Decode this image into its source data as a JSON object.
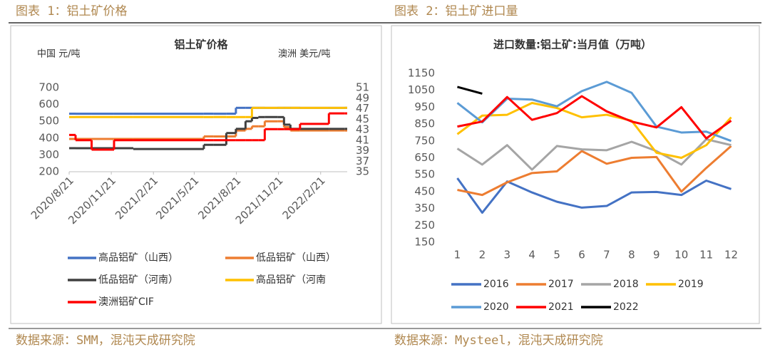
{
  "panels": [
    {
      "caption": "图表 1：铝土矿价格",
      "source": "数据来源：SMM，混沌天成研究院"
    },
    {
      "caption": "图表 2：铝土矿进口量",
      "source": "数据来源：Mysteel，混沌天成研究院"
    }
  ],
  "chart_data": [
    {
      "type": "line",
      "step": true,
      "title": "铝土矿价格",
      "y_label": "中国 元/吨",
      "y2_label": "澳洲 美元/吨",
      "x": [
        "2020/8/21",
        "2020/9/4",
        "2020/10/9",
        "2020/11/27",
        "2021/1/8",
        "2021/6/11",
        "2021/7/2",
        "2021/7/30",
        "2021/8/20",
        "2021/9/10",
        "2021/9/24",
        "2021/10/8",
        "2021/10/22",
        "2021/11/19",
        "2021/12/3",
        "2021/12/17",
        "2022/1/7",
        "2022/3/11",
        "2022/4/15"
      ],
      "xlim": [
        "2020/8/21",
        "2022/4/20"
      ],
      "xticks": [
        "2020/8/21",
        "2020/11/21",
        "2021/2/21",
        "2021/5/21",
        "2021/8/21",
        "2021/11/21",
        "2022/2/21"
      ],
      "ylim": [
        200,
        700
      ],
      "yticks": [
        200,
        300,
        400,
        500,
        600,
        700
      ],
      "y2lim": [
        35,
        51
      ],
      "y2ticks": [
        35,
        37,
        39,
        41,
        43,
        45,
        47,
        49,
        51
      ],
      "legend": "bottom",
      "series": [
        {
          "name": "高品铝矿（山西）",
          "color": "#4472c4",
          "values": [
            545,
            545,
            545,
            545,
            545,
            545,
            545,
            545,
            580,
            580,
            580,
            580,
            580,
            580,
            580,
            580,
            580,
            580,
            580
          ]
        },
        {
          "name": "低品铝矿（山西）",
          "color": "#ed7d31",
          "values": [
            395,
            395,
            395,
            395,
            395,
            410,
            410,
            410,
            445,
            455,
            470,
            470,
            500,
            500,
            465,
            445,
            445,
            445,
            445
          ]
        },
        {
          "name": "低品铝矿（河南）",
          "color": "#404040",
          "values": [
            340,
            340,
            340,
            340,
            335,
            360,
            360,
            430,
            455,
            500,
            520,
            525,
            525,
            525,
            480,
            455,
            455,
            455,
            455
          ]
        },
        {
          "name": "高品铝矿（河南",
          "color": "#ffc000",
          "values": [
            525,
            525,
            525,
            525,
            525,
            525,
            525,
            525,
            525,
            525,
            580,
            580,
            580,
            580,
            580,
            580,
            580,
            580,
            580
          ]
        },
        {
          "name": "澳洲铝矿CIF",
          "color": "#ff0000",
          "axis": "y2",
          "values": [
            42,
            41,
            39.2,
            41,
            41,
            41,
            41,
            41,
            41,
            41,
            41,
            41,
            43.1,
            43.1,
            43.1,
            43.1,
            44.1,
            46.1,
            46.1
          ]
        }
      ]
    },
    {
      "type": "line",
      "title": "进口数量:铝土矿:当月值（万吨）",
      "categories": [
        "1",
        "2",
        "3",
        "4",
        "5",
        "6",
        "7",
        "8",
        "9",
        "10",
        "11",
        "12"
      ],
      "ylim": [
        150,
        1150
      ],
      "yticks": [
        150,
        250,
        350,
        450,
        550,
        650,
        750,
        850,
        950,
        1050,
        1150
      ],
      "legend": "bottom",
      "series": [
        {
          "name": "2016",
          "color": "#4472c4",
          "values": [
            530,
            325,
            510,
            445,
            390,
            355,
            365,
            445,
            448,
            430,
            515,
            465
          ]
        },
        {
          "name": "2017",
          "color": "#ed7d31",
          "values": [
            460,
            430,
            505,
            560,
            570,
            690,
            615,
            650,
            655,
            450,
            590,
            720
          ]
        },
        {
          "name": "2018",
          "color": "#a5a5a5",
          "values": [
            705,
            610,
            725,
            580,
            720,
            700,
            695,
            745,
            690,
            610,
            760,
            725
          ]
        },
        {
          "name": "2019",
          "color": "#ffc000",
          "values": [
            790,
            900,
            905,
            975,
            945,
            890,
            905,
            870,
            680,
            650,
            725,
            890
          ]
        },
        {
          "name": "2020",
          "color": "#5b9bd5",
          "values": [
            975,
            860,
            1000,
            995,
            955,
            1045,
            1100,
            1035,
            835,
            800,
            805,
            750
          ]
        },
        {
          "name": "2021",
          "color": "#ff0000",
          "values": [
            835,
            865,
            1010,
            875,
            915,
            1015,
            925,
            865,
            830,
            950,
            765,
            870
          ]
        },
        {
          "name": "2022",
          "color": "#000000",
          "values": [
            1070,
            1030,
            null,
            null,
            null,
            null,
            null,
            null,
            null,
            null,
            null,
            null
          ]
        }
      ]
    }
  ]
}
